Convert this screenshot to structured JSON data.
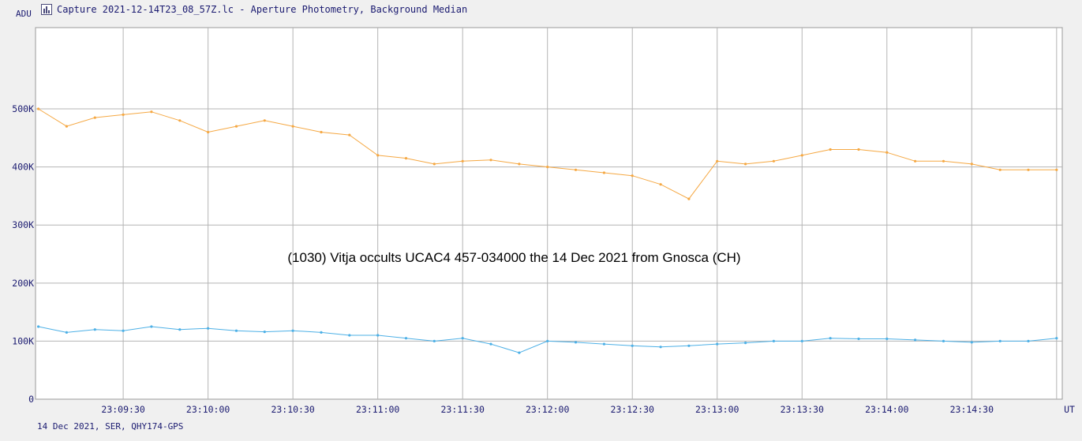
{
  "window": {
    "title": "Capture 2021-12-14T23_08_57Z.lc - Aperture Photometry, Background Median",
    "icon": "chart-icon"
  },
  "footer_text": "14 Dec 2021, SER, QHY174-GPS",
  "colors": {
    "background": "#f0f0f0",
    "plot_background": "#ffffff",
    "grid": "#b4b4b4",
    "series_orange": "#f5a843",
    "series_blue": "#4db0e6",
    "text": "#1a1a70"
  },
  "chart_data": {
    "type": "line",
    "title": "",
    "annotation": "(1030) Vitja occults UCAC4 457-034000 the 14 Dec 2021 from Gnosca (CH)",
    "ylabel": "ADU",
    "xlabel": "UT",
    "ylim": [
      0,
      640000
    ],
    "yticks": [
      0,
      100000,
      200000,
      300000,
      400000,
      500000
    ],
    "ytick_labels": [
      "0",
      "100K",
      "200K",
      "300K",
      "400K",
      "500K"
    ],
    "xlim": [
      "23:08:59",
      "23:15:02"
    ],
    "xticks": [
      "23:09:30",
      "23:10:00",
      "23:10:30",
      "23:11:00",
      "23:11:30",
      "23:12:00",
      "23:12:30",
      "23:13:00",
      "23:13:30",
      "23:14:00",
      "23:14:30",
      "23:15:00"
    ],
    "xtick_labels": [
      "23:09:30",
      "23:10:00",
      "23:10:30",
      "23:11:00",
      "23:11:30",
      "23:12:00",
      "23:12:30",
      "23:13:00",
      "23:13:30",
      "23:14:00",
      "23:14:30",
      ""
    ],
    "grid": true,
    "legend": "none",
    "series": [
      {
        "color": "#f5a843",
        "x": [
          "23:09:00",
          "23:09:10",
          "23:09:20",
          "23:09:30",
          "23:09:40",
          "23:09:50",
          "23:10:00",
          "23:10:10",
          "23:10:20",
          "23:10:30",
          "23:10:40",
          "23:10:50",
          "23:11:00",
          "23:11:10",
          "23:11:20",
          "23:11:30",
          "23:11:40",
          "23:11:50",
          "23:12:00",
          "23:12:10",
          "23:12:20",
          "23:12:30",
          "23:12:40",
          "23:12:50",
          "23:13:00",
          "23:13:10",
          "23:13:20",
          "23:13:30",
          "23:13:40",
          "23:13:50",
          "23:14:00",
          "23:14:10",
          "23:14:20",
          "23:14:30",
          "23:14:40",
          "23:14:50",
          "23:15:00"
        ],
        "values": [
          500000,
          470000,
          485000,
          490000,
          495000,
          480000,
          460000,
          470000,
          480000,
          470000,
          460000,
          455000,
          420000,
          415000,
          405000,
          410000,
          412000,
          405000,
          400000,
          395000,
          390000,
          385000,
          370000,
          345000,
          410000,
          405000,
          410000,
          420000,
          430000,
          430000,
          425000,
          410000,
          410000,
          405000,
          395000,
          395000,
          395000
        ]
      },
      {
        "color": "#4db0e6",
        "x": [
          "23:09:00",
          "23:09:10",
          "23:09:20",
          "23:09:30",
          "23:09:40",
          "23:09:50",
          "23:10:00",
          "23:10:10",
          "23:10:20",
          "23:10:30",
          "23:10:40",
          "23:10:50",
          "23:11:00",
          "23:11:10",
          "23:11:20",
          "23:11:30",
          "23:11:40",
          "23:11:50",
          "23:12:00",
          "23:12:10",
          "23:12:20",
          "23:12:30",
          "23:12:40",
          "23:12:50",
          "23:13:00",
          "23:13:10",
          "23:13:20",
          "23:13:30",
          "23:13:40",
          "23:13:50",
          "23:14:00",
          "23:14:10",
          "23:14:20",
          "23:14:30",
          "23:14:40",
          "23:14:50",
          "23:15:00"
        ],
        "values": [
          125000,
          115000,
          120000,
          118000,
          125000,
          120000,
          122000,
          118000,
          116000,
          118000,
          115000,
          110000,
          110000,
          105000,
          100000,
          105000,
          95000,
          80000,
          100000,
          98000,
          95000,
          92000,
          90000,
          92000,
          95000,
          97000,
          100000,
          100000,
          105000,
          104000,
          104000,
          102000,
          100000,
          98000,
          100000,
          100000,
          105000
        ]
      }
    ]
  }
}
